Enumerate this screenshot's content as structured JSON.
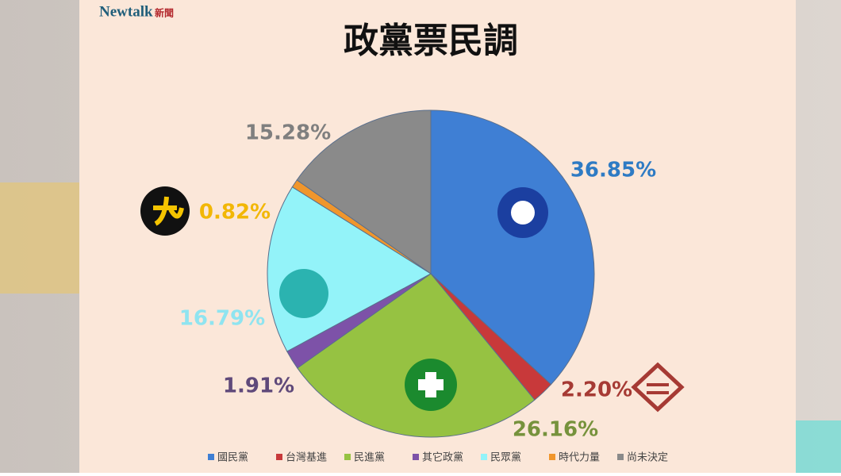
{
  "brand": {
    "name": "Newtalk",
    "suffix": "新聞"
  },
  "chart_data": {
    "type": "pie",
    "title": "政黨票民調",
    "categories": [
      "國民黨",
      "台灣基進",
      "民進黨",
      "其它政黨",
      "民眾黨",
      "時代力量",
      "尚未決定"
    ],
    "values": [
      36.85,
      2.2,
      26.16,
      1.91,
      16.79,
      0.82,
      15.28
    ],
    "value_labels": [
      "36.85%",
      "2.20%",
      "26.16%",
      "1.91%",
      "16.79%",
      "0.82%",
      "15.28%"
    ],
    "colors": [
      "#3f7fd4",
      "#c8393a",
      "#96c242",
      "#7d52a8",
      "#93f3f9",
      "#f0962c",
      "#8a8a8a"
    ],
    "label_colors": [
      "#2e7bc4",
      "#a63a34",
      "#76923c",
      "#5f497a",
      "#8fe4f0",
      "#f2b705",
      "#7f7f7f"
    ],
    "legend": "bottom"
  }
}
